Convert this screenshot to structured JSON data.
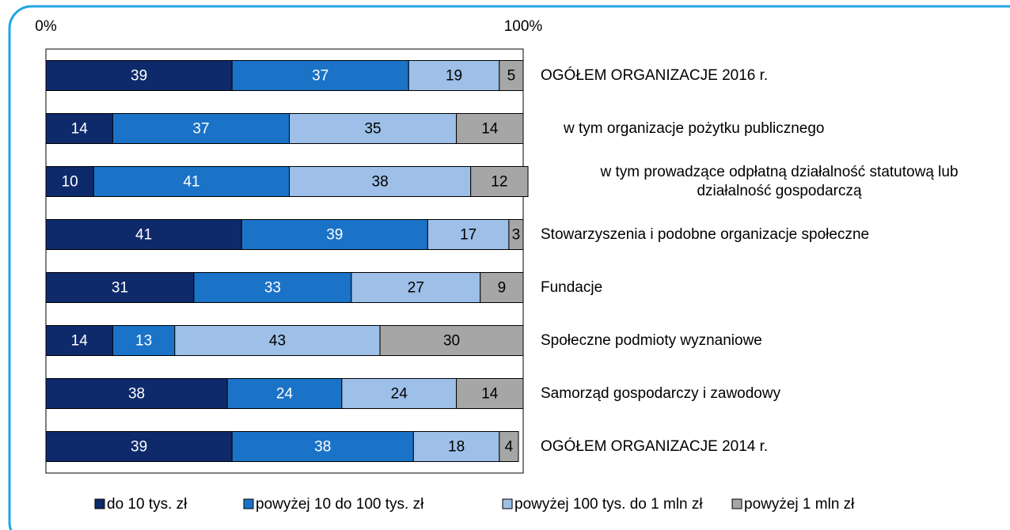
{
  "chart_data": {
    "type": "stacked_barh",
    "categories": [
      "OGÓŁEM ORGANIZACJE 2016 r.",
      "w tym organizacje pożytku publicznego",
      "w tym prowadzące odpłatną działalność statutową lub działalność gospodarczą",
      "Stowarzyszenia i podobne organizacje społeczne",
      "Fundacje",
      "Społeczne podmioty wyznaniowe",
      "Samorząd gospodarczy i zawodowy",
      "OGÓŁEM ORGANIZACJE 2014 r."
    ],
    "series": [
      {
        "name": "do 10 tys. zł",
        "color": "#0f2a6b",
        "values": [
          39,
          14,
          10,
          41,
          31,
          14,
          38,
          39
        ]
      },
      {
        "name": "powyżej 10 do 100 tys. zł",
        "color": "#1a73c7",
        "values": [
          37,
          37,
          41,
          39,
          33,
          13,
          24,
          38
        ]
      },
      {
        "name": "powyżej 100 tys. do 1 mln zł",
        "color": "#9dbfe8",
        "values": [
          19,
          35,
          38,
          17,
          27,
          43,
          24,
          18
        ]
      },
      {
        "name": "powyżej 1 mln zł",
        "color": "#a6a6a6",
        "values": [
          5,
          14,
          12,
          3,
          9,
          30,
          14,
          4
        ]
      }
    ],
    "xlim": [
      0,
      100
    ],
    "xticks": [
      {
        "value": 0,
        "label": "0%"
      },
      {
        "value": 100,
        "label": "100%"
      }
    ],
    "legend": "bottom"
  }
}
